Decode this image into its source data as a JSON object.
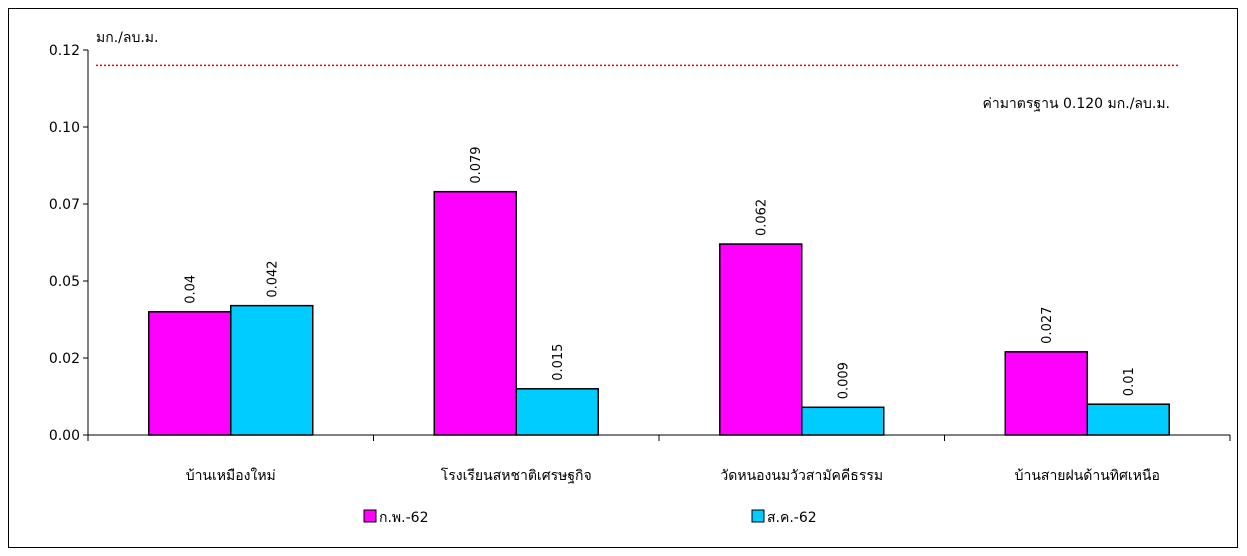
{
  "chart_data": {
    "type": "bar",
    "unit_label": "มก./ลบ.ม.",
    "categories": [
      "บ้านเหมืองใหม่",
      "โรงเรียนสหชาติเศรษฐกิจ",
      "วัดหนองนมวัวสามัคคีธรรม",
      "บ้านสายฝนด้านทิศเหนือ"
    ],
    "series": [
      {
        "name": "ก.พ.-62",
        "values": [
          0.04,
          0.079,
          0.062,
          0.027
        ],
        "labels": [
          "0.04",
          "0.079",
          "0.062",
          "0.027"
        ],
        "color": "#ff00ff"
      },
      {
        "name": "ส.ค.-62",
        "values": [
          0.042,
          0.015,
          0.009,
          0.01
        ],
        "labels": [
          "0.042",
          "0.015",
          "0.009",
          "0.01"
        ],
        "color": "#00ccff"
      }
    ],
    "ylim": [
      0,
      0.125
    ],
    "yticks": [
      0,
      0.025,
      0.05,
      0.075,
      0.1,
      0.125
    ],
    "ytick_labels": [
      "0.00",
      "0.02",
      "0.05",
      "0.07",
      "0.10",
      "0.12"
    ],
    "standard": {
      "value": 0.12,
      "label": "ค่ามาตรฐาน 0.120 มก./ลบ.ม.",
      "color": "#ff0000"
    },
    "legend_position": "bottom",
    "grid": false
  }
}
